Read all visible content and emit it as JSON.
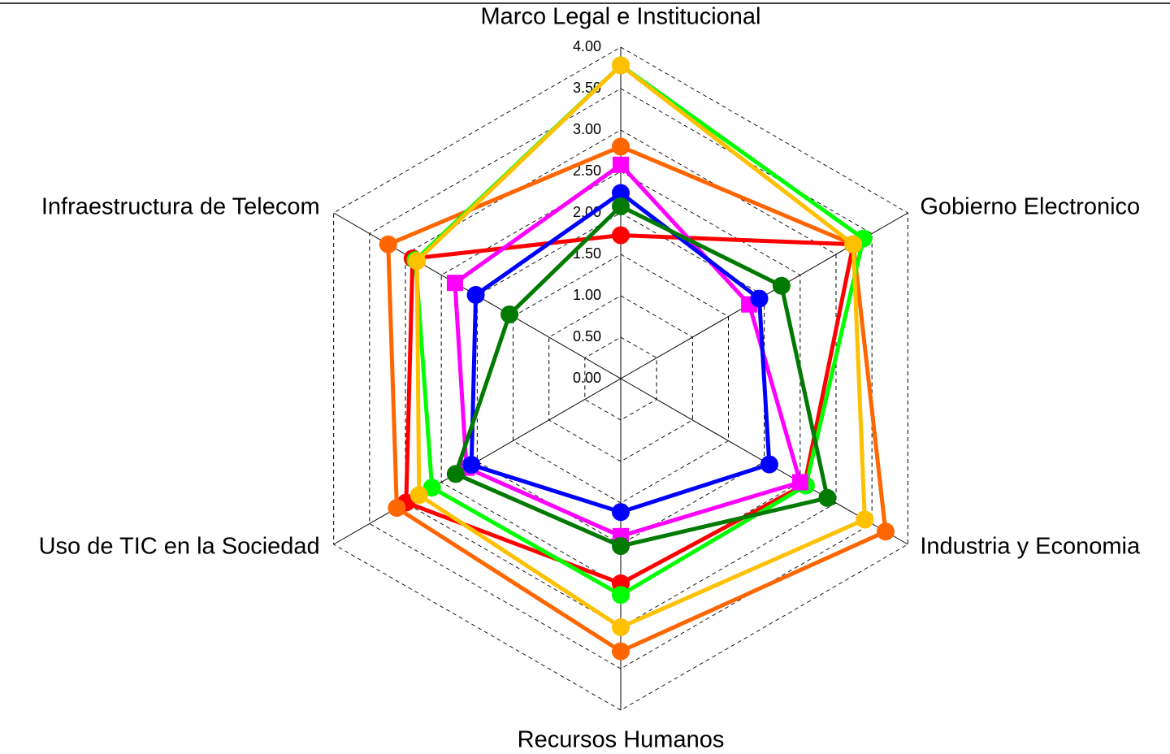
{
  "chart_data": {
    "type": "radar",
    "categories": [
      "Marco Legal e Institucional",
      "Gobierno Electronico",
      "Industria y Economia",
      "Recursos Humanos",
      "Uso de TIC en la Sociedad",
      "Infraestructura de Telecom"
    ],
    "rlim": [
      0,
      4
    ],
    "rticks": [
      {
        "value": 0,
        "label": "0.00"
      },
      {
        "value": 0.5,
        "label": "0.50"
      },
      {
        "value": 1,
        "label": "1.00"
      },
      {
        "value": 1.5,
        "label": "1.50"
      },
      {
        "value": 2,
        "label": "2.00"
      },
      {
        "value": 2.5,
        "label": "2.50"
      },
      {
        "value": 3,
        "label": "3.00"
      },
      {
        "value": 3.5,
        "label": "3.50"
      },
      {
        "value": 4,
        "label": "4.00"
      }
    ],
    "grid": true,
    "series": [
      {
        "color": "#ff0000",
        "marker": "circle",
        "values": [
          1.73,
          3.24,
          2.56,
          2.47,
          2.99,
          2.9
        ]
      },
      {
        "color": "#ff6600",
        "marker": "circle",
        "values": [
          2.8,
          3.24,
          3.69,
          3.29,
          3.12,
          3.24
        ]
      },
      {
        "color": "#00ff00",
        "marker": "circle",
        "values": [
          3.78,
          3.38,
          2.58,
          2.61,
          2.63,
          2.86
        ]
      },
      {
        "color": "#ffc000",
        "marker": "circle",
        "values": [
          3.78,
          3.24,
          3.4,
          3.0,
          2.81,
          2.84
        ]
      },
      {
        "color": "#ff00ff",
        "marker": "square",
        "values": [
          2.58,
          1.79,
          2.5,
          1.9,
          2.15,
          2.31
        ]
      },
      {
        "color": "#0000ff",
        "marker": "circle",
        "values": [
          2.24,
          1.93,
          2.07,
          1.61,
          2.08,
          2.02
        ]
      },
      {
        "color": "#007a00",
        "marker": "circle",
        "values": [
          2.08,
          2.24,
          2.88,
          2.02,
          2.3,
          1.55
        ]
      }
    ]
  }
}
